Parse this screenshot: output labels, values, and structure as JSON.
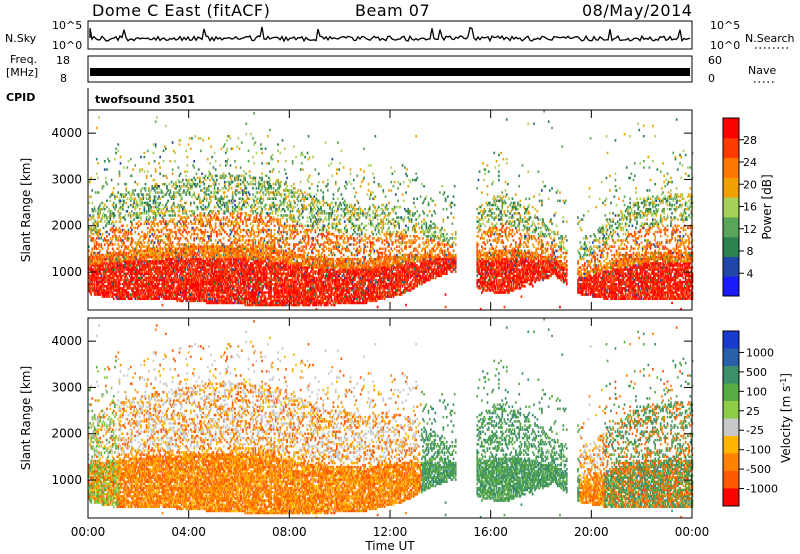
{
  "header": {
    "station": "Dome C East (fitACF)",
    "beam": "Beam 07",
    "date": "08/May/2014"
  },
  "noise_panel": {
    "left_label": "N.Sky",
    "left_top_tick": "10^5",
    "left_bottom_tick": "10^0",
    "right_label": "N.Search",
    "right_top_tick": "10^5",
    "right_bottom_tick": "10^0"
  },
  "freq_panel": {
    "left_label_1": "Freq.",
    "left_label_2": "[MHz]",
    "left_top_tick": "18",
    "left_bottom_tick": "8",
    "right_label": "Nave",
    "right_top_tick": "60",
    "right_bottom_tick": "0"
  },
  "cpid_panel": {
    "left_label": "CPID",
    "program": "twofsound 3501"
  },
  "chart_data": [
    {
      "type": "heatmap",
      "quantity": "Power",
      "ylabel": "Slant Range [km]",
      "ylim": [
        180,
        4500
      ],
      "y_ticks": [
        "1000",
        "2000",
        "3000",
        "4000"
      ],
      "colorbar_label": "Power [dB]",
      "colorbar_ticks": [
        "4",
        "8",
        "12",
        "16",
        "20",
        "24",
        "28"
      ],
      "colorbar_colors": [
        "#1a1aff",
        "#2046a8",
        "#2d8250",
        "#5aa55a",
        "#a5d25a",
        "#f0a000",
        "#ff7800",
        "#ff3c00",
        "#ff0000"
      ],
      "activity_profile": [
        {
          "x": 0.0,
          "lo": 500,
          "hi": 2300
        },
        {
          "x": 1.0,
          "lo": 400,
          "hi": 2700
        },
        {
          "x": 3.0,
          "lo": 380,
          "hi": 2900
        },
        {
          "x": 5.0,
          "lo": 300,
          "hi": 3100
        },
        {
          "x": 7.0,
          "lo": 250,
          "hi": 3100
        },
        {
          "x": 9.0,
          "lo": 250,
          "hi": 2600
        },
        {
          "x": 11.0,
          "lo": 300,
          "hi": 2400
        },
        {
          "x": 12.5,
          "lo": 500,
          "hi": 2400
        },
        {
          "x": 13.5,
          "lo": 800,
          "hi": 2100
        },
        {
          "x": 14.5,
          "lo": 1000,
          "hi": 1800
        },
        {
          "x": 15.5,
          "lo": 600,
          "hi": 2400
        },
        {
          "x": 16.5,
          "lo": 500,
          "hi": 2700
        },
        {
          "x": 17.5,
          "lo": 700,
          "hi": 2300
        },
        {
          "x": 18.5,
          "lo": 900,
          "hi": 1900
        },
        {
          "x": 19.5,
          "lo": 500,
          "hi": 1500
        },
        {
          "x": 20.5,
          "lo": 400,
          "hi": 2100
        },
        {
          "x": 22.0,
          "lo": 400,
          "hi": 2600
        },
        {
          "x": 24.0,
          "lo": 400,
          "hi": 2700
        }
      ]
    },
    {
      "type": "heatmap",
      "quantity": "Velocity",
      "ylabel": "Slant Range [km]",
      "xlabel": "Time UT",
      "ylim": [
        180,
        4500
      ],
      "y_ticks": [
        "1000",
        "2000",
        "3000",
        "4000"
      ],
      "x_ticks": [
        "00:00",
        "04:00",
        "08:00",
        "12:00",
        "16:00",
        "20:00",
        "00:00"
      ],
      "xlim": [
        0,
        24
      ],
      "colorbar_label": "Velocity [m s^-1]",
      "colorbar_ticks": [
        "1000",
        "500",
        "100",
        "25",
        "-25",
        "-100",
        "-500",
        "-1000"
      ],
      "colorbar_colors": [
        "#1a3ccc",
        "#2c5faa",
        "#3d8f6c",
        "#5aaa46",
        "#8ccc46",
        "#c8c8c8",
        "#ffb400",
        "#ff8200",
        "#ff5a00",
        "#ff0000"
      ]
    }
  ]
}
